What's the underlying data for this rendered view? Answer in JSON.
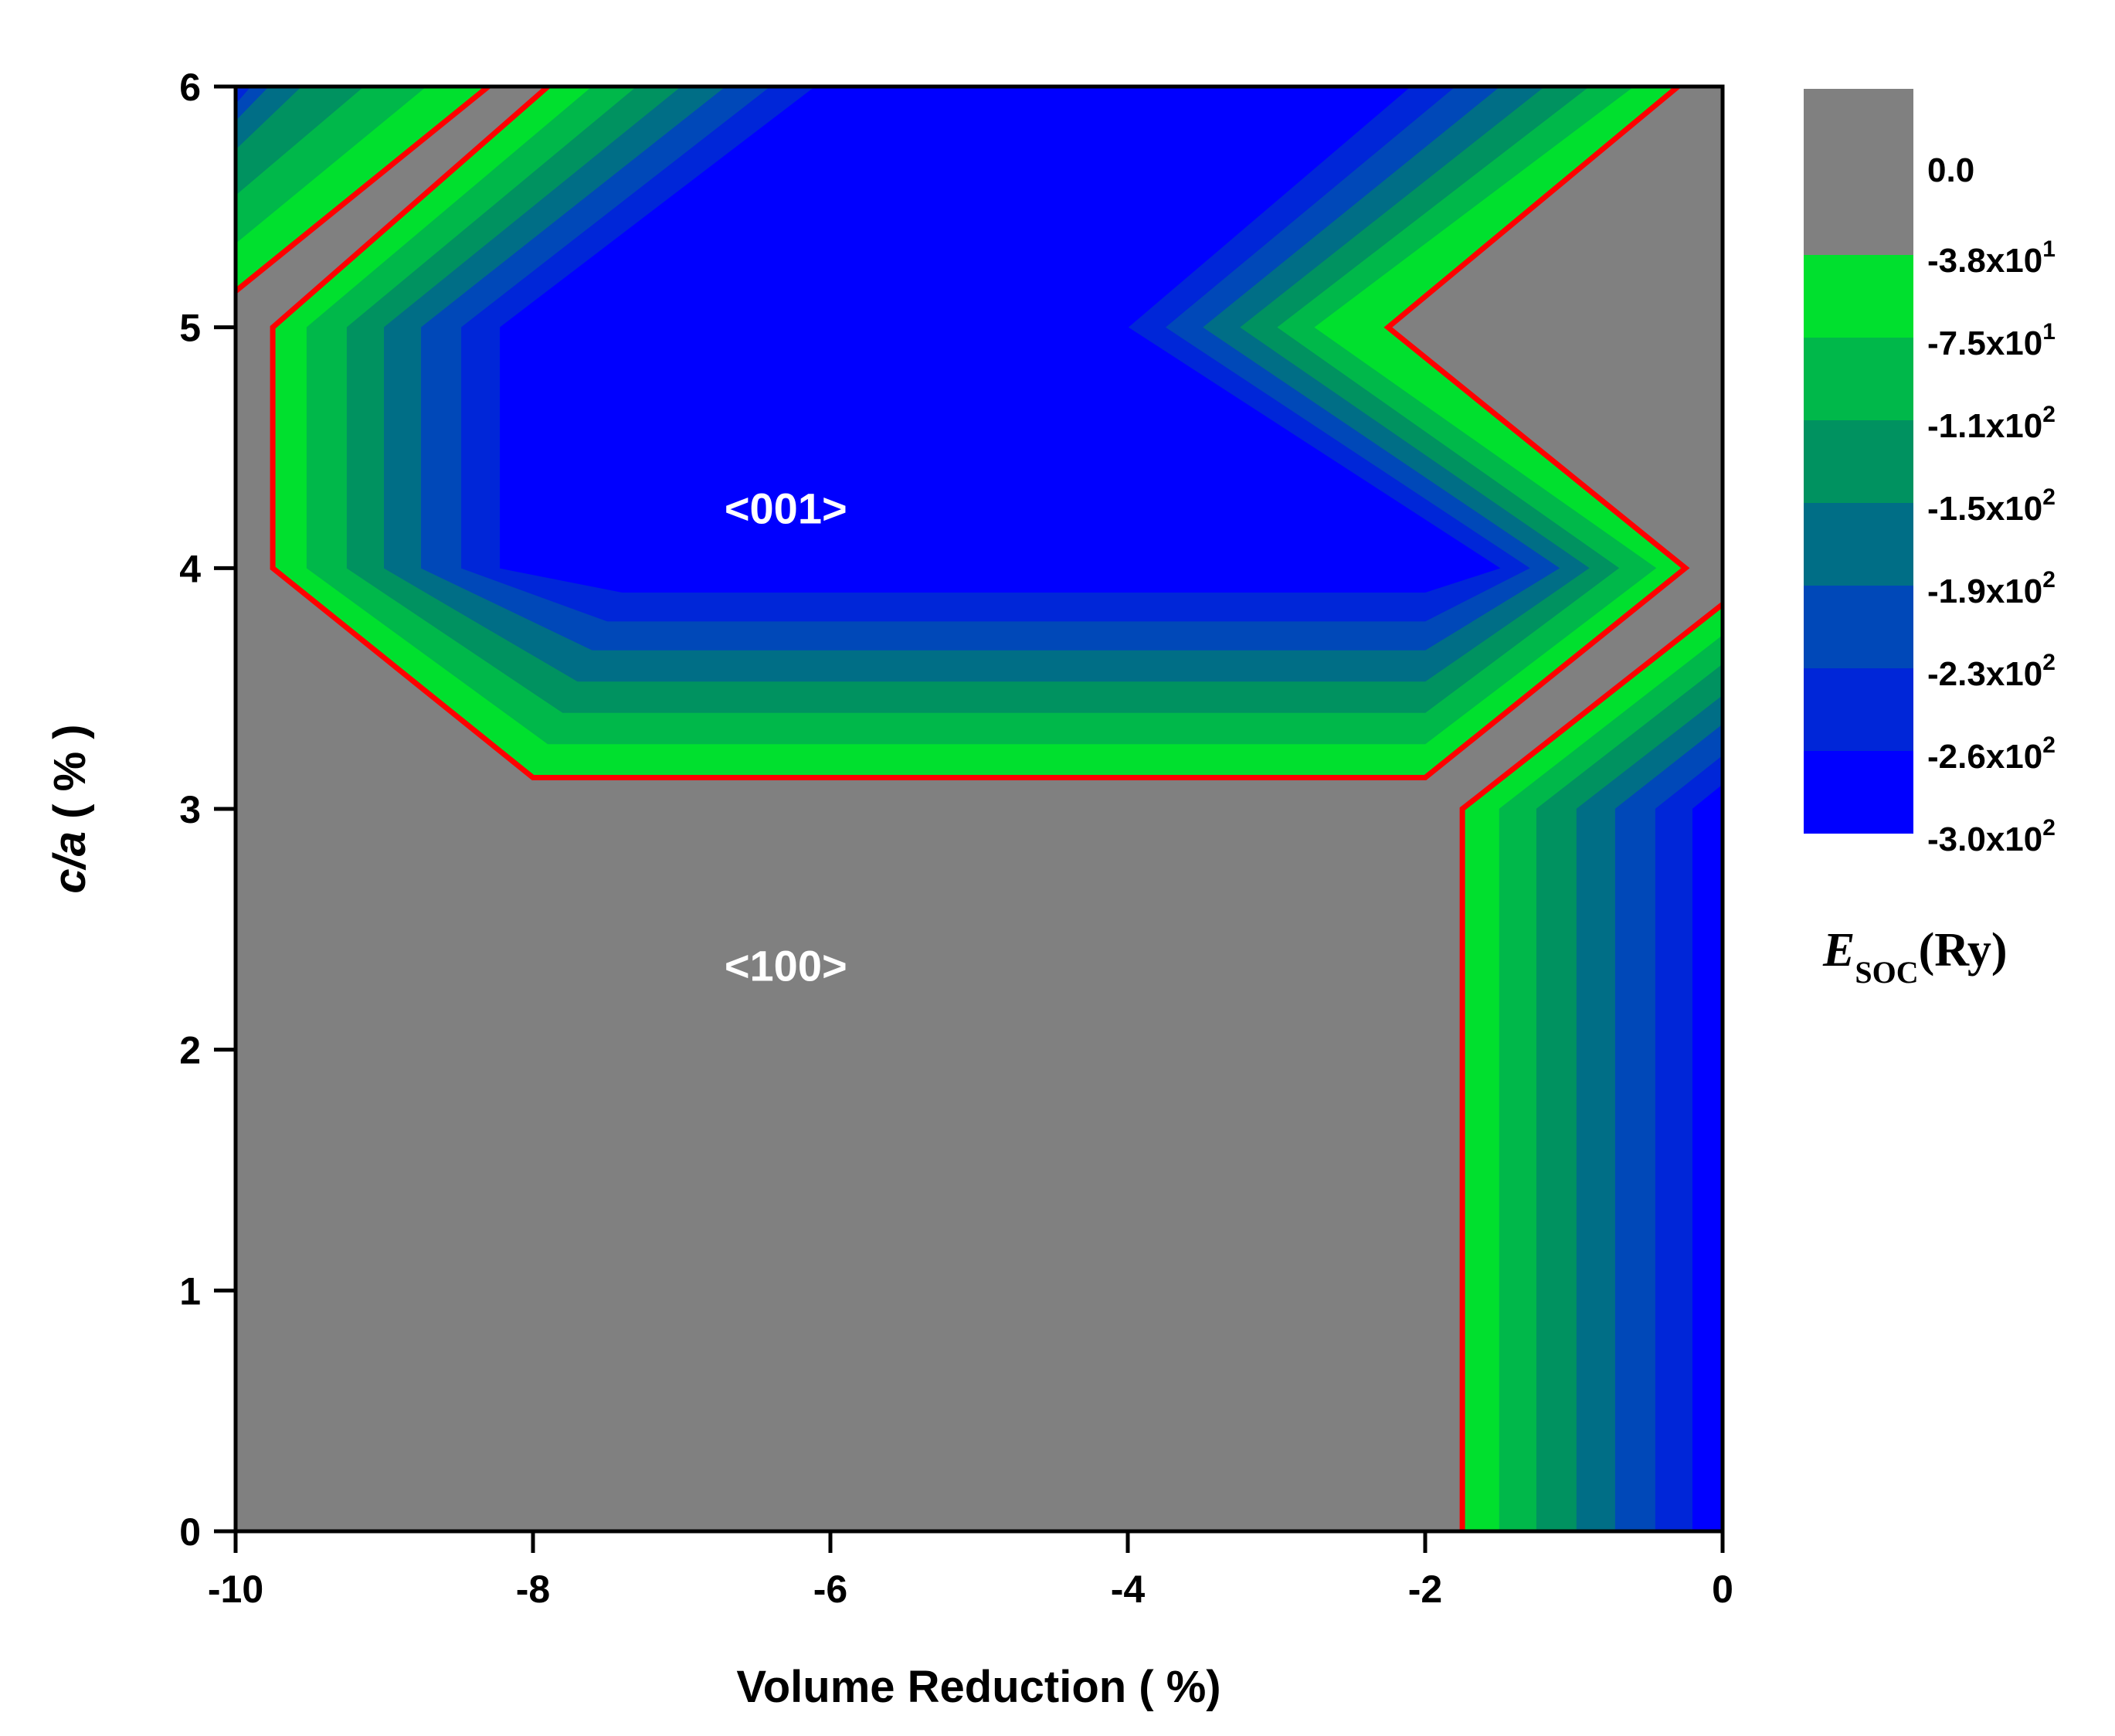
{
  "chart_data": {
    "type": "heatmap",
    "subtype": "filled-contour",
    "title": "",
    "xlabel": "Volume Reduction ( %)",
    "ylabel_parts": {
      "italic": "c/a",
      "rest": " ( % )"
    },
    "xlim": [
      -10,
      0
    ],
    "ylim": [
      0,
      6
    ],
    "x_ticks": [
      -10,
      -8,
      -6,
      -4,
      -2,
      0
    ],
    "y_ticks": [
      0,
      1,
      2,
      3,
      4,
      5,
      6
    ],
    "colorbar": {
      "title_parts": {
        "main": "E",
        "sub": "SOC",
        "unit": "(Ry)"
      },
      "levels": [
        {
          "label": "0.0",
          "color": "#808080"
        },
        {
          "label": "-3.8x10",
          "exp": "1",
          "color": "#00e02e"
        },
        {
          "label": "-7.5x10",
          "exp": "1",
          "color": "#00b84a"
        },
        {
          "label": "-1.1x10",
          "exp": "2",
          "color": "#009260"
        },
        {
          "label": "-1.5x10",
          "exp": "2",
          "color": "#006e86"
        },
        {
          "label": "-1.9x10",
          "exp": "2",
          "color": "#0048b8"
        },
        {
          "label": "-2.3x10",
          "exp": "2",
          "color": "#0026d8"
        },
        {
          "label": "-2.6x10",
          "exp": "2",
          "color": "#0000ff"
        }
      ],
      "bottom_label": "-3.0x10",
      "bottom_exp": "2"
    },
    "regions": [
      {
        "label": "<001>",
        "x": -6.3,
        "y": 4.25
      },
      {
        "label": "<100>",
        "x": -6.3,
        "y": 2.35
      }
    ],
    "zero_contour": {
      "color": "#ff0000",
      "lines": [
        [
          [
            -10,
            5.15
          ],
          [
            -8.3,
            6.0
          ]
        ],
        [
          [
            -7.9,
            6.0
          ],
          [
            -9.75,
            5.0
          ],
          [
            -9.75,
            4.0
          ],
          [
            -8.0,
            3.13
          ],
          [
            -2.0,
            3.13
          ],
          [
            -0.25,
            4.0
          ],
          [
            -2.25,
            5.0
          ],
          [
            -0.3,
            6.0
          ]
        ],
        [
          [
            -1.75,
            0.0
          ],
          [
            -1.75,
            3.0
          ],
          [
            0.0,
            3.85
          ]
        ]
      ]
    },
    "contours": [
      {
        "level": "-3.8x10^1",
        "color": "#00e02e",
        "closed": true,
        "points": [
          [
            -10,
            5.15
          ],
          [
            -8.3,
            6.0
          ],
          [
            -10,
            6.0
          ]
        ]
      },
      {
        "level": "-7.5x10^1",
        "color": "#00b84a",
        "closed": true,
        "points": [
          [
            -10,
            5.35
          ],
          [
            -8.72,
            6.0
          ],
          [
            -10,
            6.0
          ]
        ]
      },
      {
        "level": "-1.1x10^2",
        "color": "#009260",
        "closed": true,
        "points": [
          [
            -10,
            5.55
          ],
          [
            -9.14,
            6.0
          ],
          [
            -10,
            6.0
          ]
        ]
      },
      {
        "level": "-1.5x10^2",
        "color": "#006e86",
        "closed": true,
        "points": [
          [
            -10,
            5.74
          ],
          [
            -9.56,
            6.0
          ],
          [
            -10,
            6.0
          ]
        ]
      },
      {
        "level": "-1.9x10^2",
        "color": "#0048b8",
        "closed": true,
        "points": [
          [
            -10,
            5.86
          ],
          [
            -9.78,
            6.0
          ],
          [
            -10,
            6.0
          ]
        ]
      },
      {
        "level": "-2.3x10^2",
        "color": "#0026d8",
        "closed": true,
        "points": [
          [
            -10,
            5.93
          ],
          [
            -9.9,
            6.0
          ],
          [
            -10,
            6.0
          ]
        ]
      },
      {
        "level": "-3.8x10^1",
        "color": "#00e02e",
        "closed": true,
        "points": [
          [
            -7.9,
            6.0
          ],
          [
            -9.75,
            5.0
          ],
          [
            -9.75,
            4.0
          ],
          [
            -8.0,
            3.13
          ],
          [
            -2.0,
            3.13
          ],
          [
            -0.25,
            4.0
          ],
          [
            -2.25,
            5.0
          ],
          [
            -0.3,
            6.0
          ]
        ]
      },
      {
        "level": "-7.5x10^1",
        "color": "#00b84a",
        "closed": true,
        "points": [
          [
            -7.6,
            6.0
          ],
          [
            -9.52,
            5.0
          ],
          [
            -9.52,
            4.0
          ],
          [
            -7.9,
            3.27
          ],
          [
            -2.0,
            3.27
          ],
          [
            -0.45,
            4.0
          ],
          [
            -2.75,
            5.0
          ],
          [
            -0.6,
            6.0
          ]
        ]
      },
      {
        "level": "-1.1x10^2",
        "color": "#009260",
        "closed": true,
        "points": [
          [
            -7.3,
            6.0
          ],
          [
            -9.25,
            5.0
          ],
          [
            -9.25,
            4.0
          ],
          [
            -7.8,
            3.4
          ],
          [
            -2.0,
            3.4
          ],
          [
            -0.7,
            4.0
          ],
          [
            -3.0,
            5.0
          ],
          [
            -0.9,
            6.0
          ]
        ]
      },
      {
        "level": "-1.5x10^2",
        "color": "#006e86",
        "closed": true,
        "points": [
          [
            -7.0,
            6.0
          ],
          [
            -9.0,
            5.0
          ],
          [
            -9.0,
            4.0
          ],
          [
            -7.7,
            3.53
          ],
          [
            -2.0,
            3.53
          ],
          [
            -0.9,
            4.0
          ],
          [
            -3.25,
            5.0
          ],
          [
            -1.2,
            6.0
          ]
        ]
      },
      {
        "level": "-1.9x10^2",
        "color": "#0048b8",
        "closed": true,
        "points": [
          [
            -6.7,
            6.0
          ],
          [
            -8.75,
            5.0
          ],
          [
            -8.75,
            4.0
          ],
          [
            -7.6,
            3.66
          ],
          [
            -2.0,
            3.66
          ],
          [
            -1.1,
            4.0
          ],
          [
            -3.5,
            5.0
          ],
          [
            -1.5,
            6.0
          ]
        ]
      },
      {
        "level": "-2.3x10^2",
        "color": "#0026d8",
        "closed": true,
        "points": [
          [
            -6.4,
            6.0
          ],
          [
            -8.48,
            5.0
          ],
          [
            -8.48,
            4.0
          ],
          [
            -7.5,
            3.78
          ],
          [
            -2.0,
            3.78
          ],
          [
            -1.3,
            4.0
          ],
          [
            -3.75,
            5.0
          ],
          [
            -1.8,
            6.0
          ]
        ]
      },
      {
        "level": "-2.6x10^2",
        "color": "#0000ff",
        "closed": true,
        "points": [
          [
            -6.1,
            6.0
          ],
          [
            -8.22,
            5.0
          ],
          [
            -8.22,
            4.0
          ],
          [
            -7.4,
            3.9
          ],
          [
            -2.0,
            3.9
          ],
          [
            -1.5,
            4.0
          ],
          [
            -4.0,
            5.0
          ],
          [
            -2.1,
            6.0
          ]
        ]
      },
      {
        "level": "-3.8x10^1",
        "color": "#00e02e",
        "closed": true,
        "points": [
          [
            -1.75,
            0.0
          ],
          [
            -1.75,
            3.0
          ],
          [
            0.0,
            3.85
          ],
          [
            0.0,
            0.0
          ]
        ]
      },
      {
        "level": "-7.5x10^1",
        "color": "#00b84a",
        "closed": true,
        "points": [
          [
            -1.5,
            0.0
          ],
          [
            -1.5,
            3.0
          ],
          [
            0.0,
            3.72
          ],
          [
            0.0,
            0.0
          ]
        ]
      },
      {
        "level": "-1.1x10^2",
        "color": "#009260",
        "closed": true,
        "points": [
          [
            -1.25,
            0.0
          ],
          [
            -1.25,
            3.0
          ],
          [
            0.0,
            3.6
          ],
          [
            0.0,
            0.0
          ]
        ]
      },
      {
        "level": "-1.5x10^2",
        "color": "#006e86",
        "closed": true,
        "points": [
          [
            -0.98,
            0.0
          ],
          [
            -0.98,
            3.0
          ],
          [
            0.0,
            3.47
          ],
          [
            0.0,
            0.0
          ]
        ]
      },
      {
        "level": "-1.9x10^2",
        "color": "#0048b8",
        "closed": true,
        "points": [
          [
            -0.72,
            0.0
          ],
          [
            -0.72,
            3.0
          ],
          [
            0.0,
            3.35
          ],
          [
            0.0,
            0.0
          ]
        ]
      },
      {
        "level": "-2.3x10^2",
        "color": "#0026d8",
        "closed": true,
        "points": [
          [
            -0.45,
            0.0
          ],
          [
            -0.45,
            3.0
          ],
          [
            0.0,
            3.22
          ],
          [
            0.0,
            0.0
          ]
        ]
      },
      {
        "level": "-2.6x10^2",
        "color": "#0000ff",
        "closed": true,
        "points": [
          [
            -0.2,
            0.0
          ],
          [
            -0.2,
            3.0
          ],
          [
            0.0,
            3.1
          ],
          [
            0.0,
            0.0
          ]
        ]
      }
    ]
  }
}
